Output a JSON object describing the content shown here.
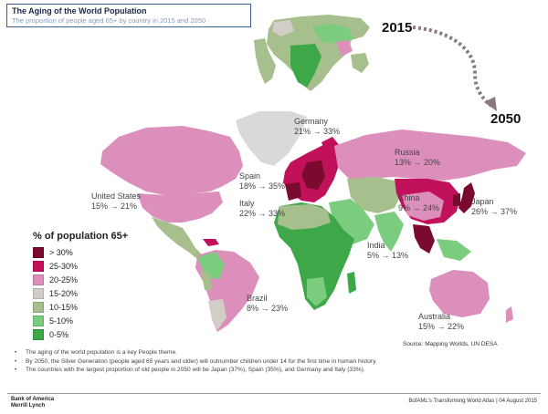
{
  "header": {
    "title": "The Aging of the World Population",
    "subtitle": "The proportion of people aged 65+ by country in 2015 and 2050"
  },
  "years": {
    "from": "2015",
    "to": "2050"
  },
  "labels": {
    "germany": {
      "name": "Germany",
      "values": "21% → 33%"
    },
    "spain": {
      "name": "Spain",
      "values": "18% → 35%"
    },
    "italy": {
      "name": "Italy",
      "values": "22% → 33%"
    },
    "russia": {
      "name": "Russia",
      "values": "13% → 20%"
    },
    "china": {
      "name": "China",
      "values": "9% → 24%"
    },
    "japan": {
      "name": "Japan",
      "values": "26% → 37%"
    },
    "united_states": {
      "name": "United States",
      "values": "15% → 21%"
    },
    "india": {
      "name": "India",
      "values": "5% → 13%"
    },
    "brazil": {
      "name": "Brazil",
      "values": "8% → 23%"
    },
    "australia": {
      "name": "Australia",
      "values": "15% → 22%"
    }
  },
  "legend": {
    "title": "% of population 65+",
    "items": [
      {
        "label": "> 30%",
        "color": "#7a0a2e"
      },
      {
        "label": "25-30%",
        "color": "#c0115a"
      },
      {
        "label": "20-25%",
        "color": "#dc8fbb"
      },
      {
        "label": "15-20%",
        "color": "#d3cdc7"
      },
      {
        "label": "10-15%",
        "color": "#a7bf8c"
      },
      {
        "label": "5-10%",
        "color": "#7ccc80"
      },
      {
        "label": "0-5%",
        "color": "#3ea849"
      }
    ]
  },
  "colors": {
    "greenland": "#d9d9d9",
    "arrow": "#8a7a80"
  },
  "source": "Source: Mapping Worlds, UN DESA",
  "bullets": [
    "The aging of the world population is a key People theme.",
    "By 2050, the Silver Generation (people aged 65 years and older) will outnumber children under 14 for the first time in human history.",
    "The countries with the largest proportion of old people in 2050 will be Japan (37%), Spain (35%), and Germany and Italy (33%)."
  ],
  "footer": {
    "logo_line1": "Bank of America",
    "logo_line2": "Merrill Lynch",
    "text": "BofAML's Transforming World Atlas | 04 August 2015"
  }
}
